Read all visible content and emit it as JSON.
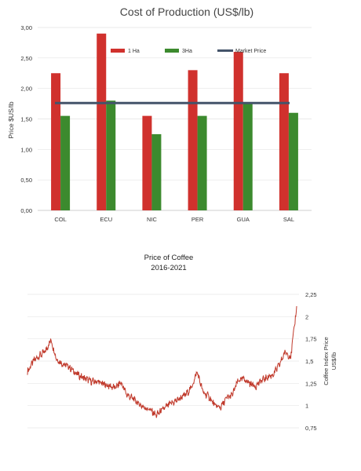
{
  "chart_data": [
    {
      "type": "bar",
      "title": "Cost of Production (US$/lb)",
      "ylabel": "Price $US/lb",
      "xlabel": "",
      "ylim": [
        0,
        3
      ],
      "yticks": [
        "0,00",
        "0,50",
        "1,00",
        "1,50",
        "2,00",
        "2,50",
        "3,00"
      ],
      "categories": [
        "COL",
        "ECU",
        "NIC",
        "PER",
        "GUA",
        "SAL"
      ],
      "series": [
        {
          "name": "1 Ha",
          "color": "#d0312d",
          "values": [
            2.25,
            2.9,
            1.55,
            2.3,
            2.6,
            2.25
          ]
        },
        {
          "name": "3Ha",
          "color": "#3c8a2e",
          "values": [
            1.55,
            1.8,
            1.25,
            1.55,
            1.75,
            1.6
          ]
        }
      ],
      "line": {
        "name": "Market Price",
        "color": "#44546a",
        "value": 1.76
      },
      "grid": true,
      "legend": "top"
    },
    {
      "type": "line",
      "title": "Price of Coffee",
      "subtitle": "2016-2021",
      "ylabel": "Coffee Index Price US$/lb",
      "ylim": [
        0.75,
        2.25
      ],
      "yticks": [
        "0,75",
        "1",
        "1,25",
        "1,5",
        "1,75",
        "2",
        "2,25"
      ],
      "grid": true,
      "color": "#c0392b",
      "series": [
        {
          "values": [
            1.38,
            1.5,
            1.56,
            1.6,
            1.74,
            1.52,
            1.47,
            1.44,
            1.38,
            1.33,
            1.3,
            1.27,
            1.27,
            1.24,
            1.22,
            1.2,
            1.26,
            1.12,
            1.08,
            1.02,
            0.98,
            0.95,
            0.89,
            0.95,
            1.0,
            1.04,
            1.08,
            1.12,
            1.2,
            1.38,
            1.15,
            1.1,
            1.0,
            0.98,
            1.08,
            1.12,
            1.28,
            1.3,
            1.25,
            1.22,
            1.28,
            1.32,
            1.35,
            1.45,
            1.6,
            1.55,
            2.1
          ]
        }
      ]
    }
  ]
}
